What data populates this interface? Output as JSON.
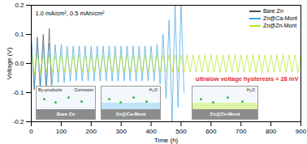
{
  "chart_data": {
    "type": "line",
    "x_label": "Time (h)",
    "y_label": "Voltage (V)",
    "x": [
      0,
      10,
      20,
      30,
      40,
      50,
      60,
      70,
      80,
      90,
      100,
      110,
      120,
      130,
      140,
      150,
      160,
      170,
      180,
      190,
      200,
      210,
      220,
      230,
      240,
      250,
      260,
      270,
      280,
      290,
      300,
      310,
      320,
      330,
      340,
      350,
      360,
      370,
      380,
      390,
      400,
      410,
      420,
      430,
      440,
      450,
      460,
      470,
      480,
      490,
      500,
      510,
      520,
      530,
      540,
      550,
      560,
      570,
      580,
      590,
      600,
      610,
      620,
      630,
      640,
      650,
      660,
      670,
      680,
      690,
      700,
      710,
      720,
      730,
      740,
      750,
      760,
      770,
      780,
      790,
      800,
      810,
      820,
      830,
      840,
      850,
      860,
      870,
      880,
      890,
      900
    ],
    "xlim": [
      0,
      900
    ],
    "xticks": [
      0,
      100,
      200,
      300,
      400,
      500,
      600,
      700,
      800,
      900
    ],
    "ylim": [
      -0.2,
      0.2
    ],
    "yticks": [
      -0.2,
      -0.1,
      {
        "value": 0,
        "label": "0.0"
      },
      0.1,
      0.2
    ],
    "grid": false,
    "legend": "top-right",
    "annotations": [
      "1.0 mA/cm², 0.5 mAh/cm²",
      "ultralow voltage hysteresis ≈ 28 mV"
    ],
    "insets": [
      {
        "label": "Bare Zn",
        "notes": [
          "By-products",
          "Corrosion"
        ]
      },
      {
        "label": "Zn@Ca-Mont",
        "notes": [
          "H₂O"
        ]
      },
      {
        "label": "Zn@Zn-Mont",
        "notes": [
          "H₂O"
        ]
      }
    ],
    "series": [
      {
        "name": "Bare Zn",
        "color": "#4d4d4d",
        "values": [
          0.09,
          -0.09,
          0.09,
          -0.09,
          0.1,
          -0.1,
          0.12,
          -0.15,
          null,
          null,
          null,
          null,
          null,
          null,
          null,
          null,
          null,
          null,
          null,
          null,
          null,
          null,
          null,
          null,
          null,
          null,
          null,
          null,
          null,
          null,
          null,
          null,
          null,
          null,
          null,
          null,
          null,
          null,
          null,
          null,
          null,
          null,
          null,
          null,
          null,
          null,
          null,
          null,
          null,
          null,
          null,
          null,
          null,
          null,
          null,
          null,
          null,
          null,
          null,
          null,
          null,
          null,
          null,
          null,
          null,
          null,
          null,
          null,
          null,
          null,
          null,
          null,
          null,
          null,
          null,
          null,
          null,
          null,
          null,
          null,
          null,
          null,
          null,
          null,
          null,
          null,
          null,
          null,
          null,
          null,
          null
        ]
      },
      {
        "name": "Zn@Ca-Mont",
        "color": "#3fa0e6",
        "values": [
          0.08,
          -0.08,
          0.075,
          -0.075,
          0.07,
          -0.07,
          0.07,
          -0.07,
          0.065,
          -0.065,
          0.065,
          -0.065,
          0.06,
          -0.06,
          0.06,
          -0.06,
          0.06,
          -0.06,
          0.06,
          -0.06,
          0.06,
          -0.06,
          0.06,
          -0.06,
          0.06,
          -0.06,
          0.06,
          -0.06,
          0.06,
          -0.06,
          0.06,
          -0.06,
          0.06,
          -0.06,
          0.06,
          -0.06,
          0.06,
          -0.06,
          0.06,
          -0.06,
          0.06,
          -0.06,
          0.065,
          -0.07,
          0.1,
          -0.12,
          0.15,
          -0.2,
          0.2,
          -0.15,
          0.2,
          -0.1,
          null,
          null,
          null,
          null,
          null,
          null,
          null,
          null,
          null,
          null,
          null,
          null,
          null,
          null,
          null,
          null,
          null,
          null,
          null,
          null,
          null,
          null,
          null,
          null,
          null,
          null,
          null,
          null,
          null,
          null,
          null,
          null,
          null,
          null,
          null,
          null,
          null,
          null,
          null
        ]
      },
      {
        "name": "Zn@Zn-Mont",
        "color": "#b5e61d",
        "values": [
          0.04,
          -0.04,
          0.035,
          -0.035,
          0.03,
          -0.03,
          0.03,
          -0.03,
          0.03,
          -0.03,
          0.03,
          -0.03,
          0.03,
          -0.03,
          0.03,
          -0.03,
          0.03,
          -0.03,
          0.03,
          -0.03,
          0.03,
          -0.03,
          0.03,
          -0.03,
          0.03,
          -0.03,
          0.03,
          -0.03,
          0.03,
          -0.03,
          0.03,
          -0.03,
          0.03,
          -0.03,
          0.03,
          -0.03,
          0.03,
          -0.03,
          0.03,
          -0.03,
          0.03,
          -0.03,
          0.03,
          -0.03,
          0.03,
          -0.03,
          0.03,
          -0.03,
          0.03,
          -0.03,
          0.03,
          -0.03,
          0.03,
          -0.03,
          0.03,
          -0.03,
          0.03,
          -0.03,
          0.03,
          -0.03,
          0.03,
          -0.03,
          0.03,
          -0.03,
          0.03,
          -0.03,
          0.03,
          -0.03,
          0.03,
          -0.03,
          0.03,
          -0.03,
          0.03,
          -0.03,
          0.03,
          -0.03,
          0.03,
          -0.03,
          0.03,
          -0.03,
          0.03,
          -0.03,
          0.03,
          -0.03,
          0.03,
          -0.03,
          0.03,
          -0.03,
          0.03,
          -0.03,
          0.03
        ]
      }
    ]
  }
}
